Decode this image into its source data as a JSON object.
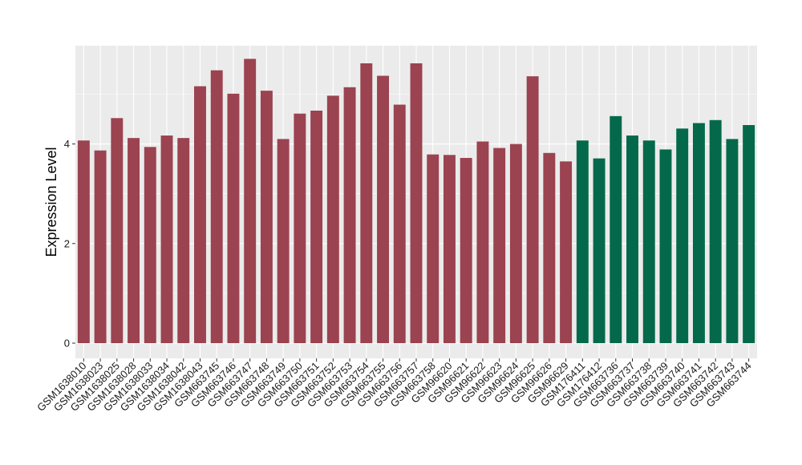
{
  "chart_data": {
    "type": "bar",
    "title": "",
    "xlabel": "",
    "ylabel": "Expression Level",
    "ylim": [
      0,
      6
    ],
    "yticks": [
      0,
      2,
      4
    ],
    "grid": true,
    "categories": [
      "GSM1638010",
      "GSM1638023",
      "GSM1638025",
      "GSM1638028",
      "GSM1638033",
      "GSM1638034",
      "GSM1638042",
      "GSM1638043",
      "GSM663745",
      "GSM663746",
      "GSM663747",
      "GSM663748",
      "GSM663749",
      "GSM663750",
      "GSM663751",
      "GSM663752",
      "GSM663753",
      "GSM663754",
      "GSM663755",
      "GSM663756",
      "GSM663757",
      "GSM663758",
      "GSM96620",
      "GSM96621",
      "GSM96622",
      "GSM96623",
      "GSM96624",
      "GSM96625",
      "GSM96626",
      "GSM96629",
      "GSM176411",
      "GSM176412",
      "GSM663736",
      "GSM663737",
      "GSM663738",
      "GSM663739",
      "GSM663740",
      "GSM663741",
      "GSM663742",
      "GSM663743",
      "GSM663744"
    ],
    "values": [
      4.07,
      3.87,
      4.52,
      4.12,
      3.94,
      4.17,
      4.12,
      5.16,
      5.48,
      5.01,
      5.71,
      5.07,
      4.1,
      4.61,
      4.67,
      4.97,
      5.14,
      5.62,
      5.37,
      4.79,
      5.62,
      3.79,
      3.78,
      3.72,
      4.05,
      3.92,
      4.0,
      5.36,
      3.82,
      3.65,
      4.07,
      3.71,
      4.56,
      4.17,
      4.07,
      3.89,
      4.31,
      4.42,
      4.48,
      4.1,
      4.38
    ],
    "group_sizes": [
      30,
      11
    ],
    "colors": {
      "group1": "#9B4350",
      "group2": "#03694A",
      "panel": "#EBEBEB",
      "grid": "#FFFFFF"
    }
  }
}
